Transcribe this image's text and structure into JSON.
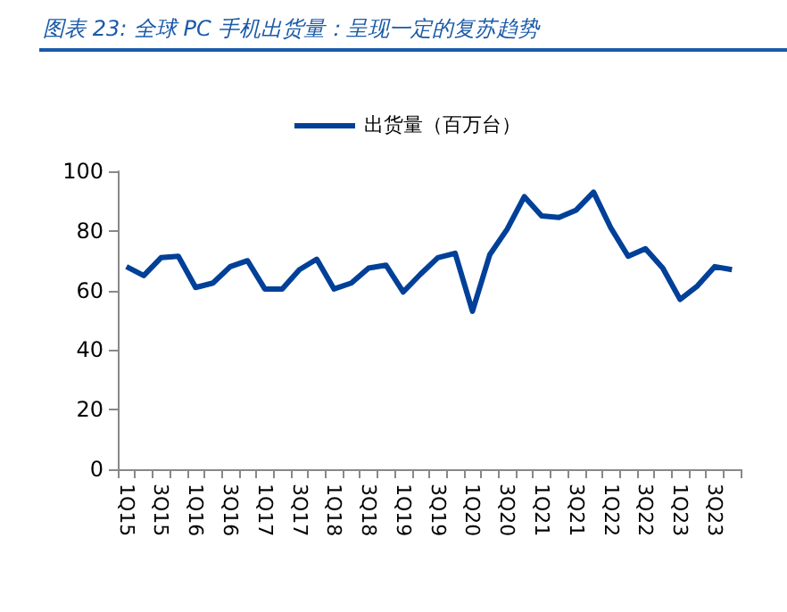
{
  "chart_data": {
    "type": "line",
    "title": "图表 23:  全球 PC 手机出货量：呈现一定的复苏趋势",
    "categories": [
      "1Q15",
      null,
      "3Q15",
      null,
      "1Q16",
      null,
      "3Q16",
      null,
      "1Q17",
      null,
      "3Q17",
      null,
      "1Q18",
      null,
      "3Q18",
      null,
      "1Q19",
      null,
      "3Q19",
      null,
      "1Q20",
      null,
      "3Q20",
      null,
      "1Q21",
      null,
      "3Q21",
      null,
      "1Q22",
      null,
      "3Q22",
      null,
      "1Q23",
      null,
      "3Q23",
      null
    ],
    "series": [
      {
        "name": "出货量（百万台）",
        "color": "#004098",
        "values": [
          68,
          65,
          71,
          71.5,
          61,
          62.5,
          68,
          70,
          60.5,
          60.5,
          67,
          70.5,
          60.5,
          62.5,
          67.5,
          68.5,
          59.5,
          65.5,
          71,
          72.5,
          53,
          72,
          80.5,
          91.5,
          85,
          84.5,
          87,
          93,
          81,
          71.5,
          74,
          67.5,
          57,
          61.5,
          68,
          67
        ]
      }
    ],
    "ylim": [
      0,
      100
    ],
    "yticks": [
      0,
      20,
      40,
      60,
      80,
      100
    ],
    "grid": false,
    "legend": "top",
    "marker": "none",
    "line_style": "solid"
  }
}
